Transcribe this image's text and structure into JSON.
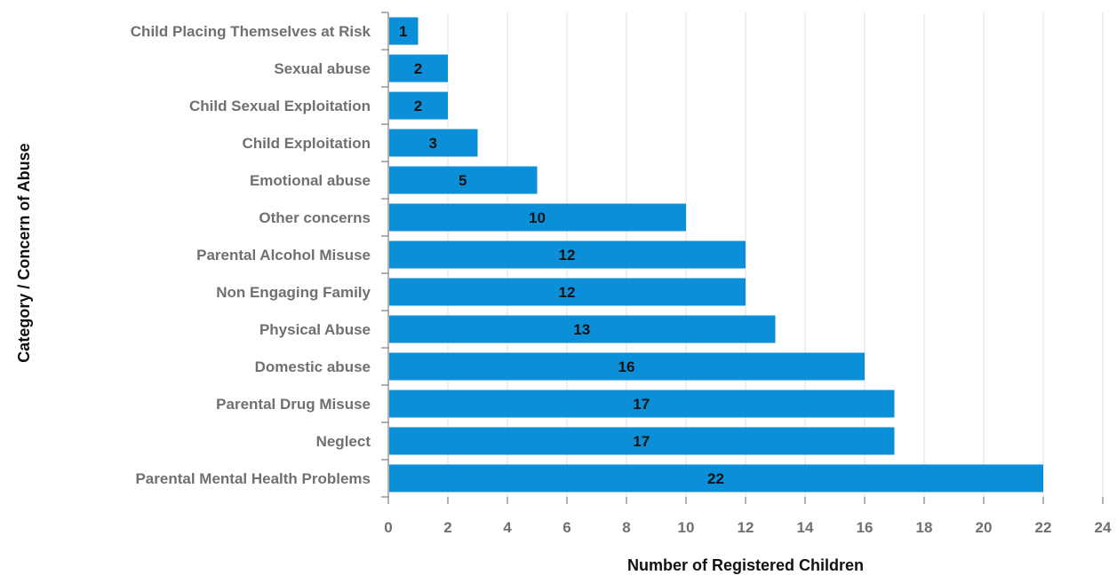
{
  "chart_data": {
    "type": "bar",
    "orientation": "horizontal",
    "categories": [
      "Child Placing Themselves at Risk",
      "Sexual abuse",
      "Child Sexual Exploitation",
      "Child Exploitation",
      "Emotional abuse",
      "Other concerns",
      "Parental Alcohol Misuse",
      "Non Engaging Family",
      "Physical Abuse",
      "Domestic abuse",
      "Parental Drug Misuse",
      "Neglect",
      "Parental Mental Health Problems"
    ],
    "values": [
      1,
      2,
      2,
      3,
      5,
      10,
      12,
      12,
      13,
      16,
      17,
      17,
      22
    ],
    "data_labels": [
      "1",
      "2",
      "2",
      "3",
      "5",
      "10",
      "12",
      "12",
      "13",
      "16",
      "17",
      "17",
      "22"
    ],
    "title": "",
    "xlabel": "Number of Registered Children",
    "ylabel": "Category / Concern of Abuse",
    "xlim": [
      0,
      24
    ],
    "xticks": [
      "0",
      "2",
      "4",
      "6",
      "8",
      "10",
      "12",
      "14",
      "16",
      "18",
      "20",
      "22",
      "24"
    ],
    "grid": "vertical",
    "legend": "none",
    "colors": {
      "bar": "#0A8FD8",
      "grid": "#E0E0E0",
      "axis": "#666666",
      "tick_text": "#707070",
      "title_text": "#111111",
      "data_label": "#111111"
    }
  }
}
